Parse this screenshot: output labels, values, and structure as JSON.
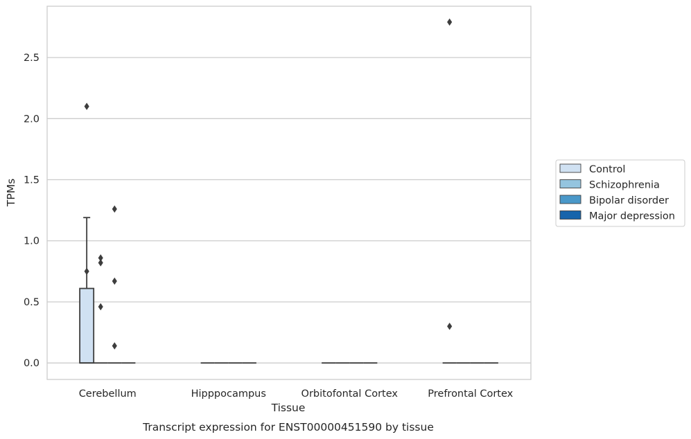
{
  "chart_data": {
    "type": "boxplot",
    "caption": "Transcript expression for ENST00000451590 by tissue",
    "xlabel": "Tissue",
    "ylabel": "TPMs",
    "ylim": [
      -0.135,
      2.92
    ],
    "yticks": [
      0.0,
      0.5,
      1.0,
      1.5,
      2.0,
      2.5
    ],
    "ytick_labels": [
      "0.0",
      "0.5",
      "1.0",
      "1.5",
      "2.0",
      "2.5"
    ],
    "grid": "horizontal",
    "legend_position": "right",
    "categories": [
      "Cerebellum",
      "Hipppocampus",
      "Orbitofontal Cortex",
      "Prefrontal Cortex"
    ],
    "series": [
      {
        "name": "Control",
        "color": "#d0e1f2",
        "boxes": [
          {
            "q1": 0.0,
            "median": 0.0,
            "q3": 0.61,
            "whisker_low": 0.0,
            "whisker_high": 1.19,
            "outliers": [
              2.1,
              0.75
            ]
          },
          {
            "q1": 0.0,
            "median": 0.0,
            "q3": 0.0,
            "whisker_low": 0.0,
            "whisker_high": 0.0,
            "outliers": []
          },
          {
            "q1": 0.0,
            "median": 0.0,
            "q3": 0.0,
            "whisker_low": 0.0,
            "whisker_high": 0.0,
            "outliers": []
          },
          {
            "q1": 0.0,
            "median": 0.0,
            "q3": 0.0,
            "whisker_low": 0.0,
            "whisker_high": 0.0,
            "outliers": [
              2.79,
              0.3
            ]
          }
        ]
      },
      {
        "name": "Schizophrenia",
        "color": "#94c4df",
        "boxes": [
          {
            "q1": 0.0,
            "median": 0.0,
            "q3": 0.0,
            "whisker_low": 0.0,
            "whisker_high": 0.0,
            "outliers": [
              0.86,
              0.82,
              0.46
            ]
          },
          {
            "q1": 0.0,
            "median": 0.0,
            "q3": 0.0,
            "whisker_low": 0.0,
            "whisker_high": 0.0,
            "outliers": []
          },
          {
            "q1": 0.0,
            "median": 0.0,
            "q3": 0.0,
            "whisker_low": 0.0,
            "whisker_high": 0.0,
            "outliers": []
          },
          {
            "q1": 0.0,
            "median": 0.0,
            "q3": 0.0,
            "whisker_low": 0.0,
            "whisker_high": 0.0,
            "outliers": []
          }
        ]
      },
      {
        "name": "Bipolar disorder",
        "color": "#4a98c9",
        "boxes": [
          {
            "q1": 0.0,
            "median": 0.0,
            "q3": 0.0,
            "whisker_low": 0.0,
            "whisker_high": 0.0,
            "outliers": [
              1.26,
              0.67,
              0.14
            ]
          },
          {
            "q1": 0.0,
            "median": 0.0,
            "q3": 0.0,
            "whisker_low": 0.0,
            "whisker_high": 0.0,
            "outliers": []
          },
          {
            "q1": 0.0,
            "median": 0.0,
            "q3": 0.0,
            "whisker_low": 0.0,
            "whisker_high": 0.0,
            "outliers": []
          },
          {
            "q1": 0.0,
            "median": 0.0,
            "q3": 0.0,
            "whisker_low": 0.0,
            "whisker_high": 0.0,
            "outliers": []
          }
        ]
      },
      {
        "name": "Major depression",
        "color": "#1764ab",
        "boxes": [
          {
            "q1": 0.0,
            "median": 0.0,
            "q3": 0.0,
            "whisker_low": 0.0,
            "whisker_high": 0.0,
            "outliers": []
          },
          {
            "q1": 0.0,
            "median": 0.0,
            "q3": 0.0,
            "whisker_low": 0.0,
            "whisker_high": 0.0,
            "outliers": []
          },
          {
            "q1": 0.0,
            "median": 0.0,
            "q3": 0.0,
            "whisker_low": 0.0,
            "whisker_high": 0.0,
            "outliers": []
          },
          {
            "q1": 0.0,
            "median": 0.0,
            "q3": 0.0,
            "whisker_low": 0.0,
            "whisker_high": 0.0,
            "outliers": []
          }
        ]
      }
    ]
  }
}
